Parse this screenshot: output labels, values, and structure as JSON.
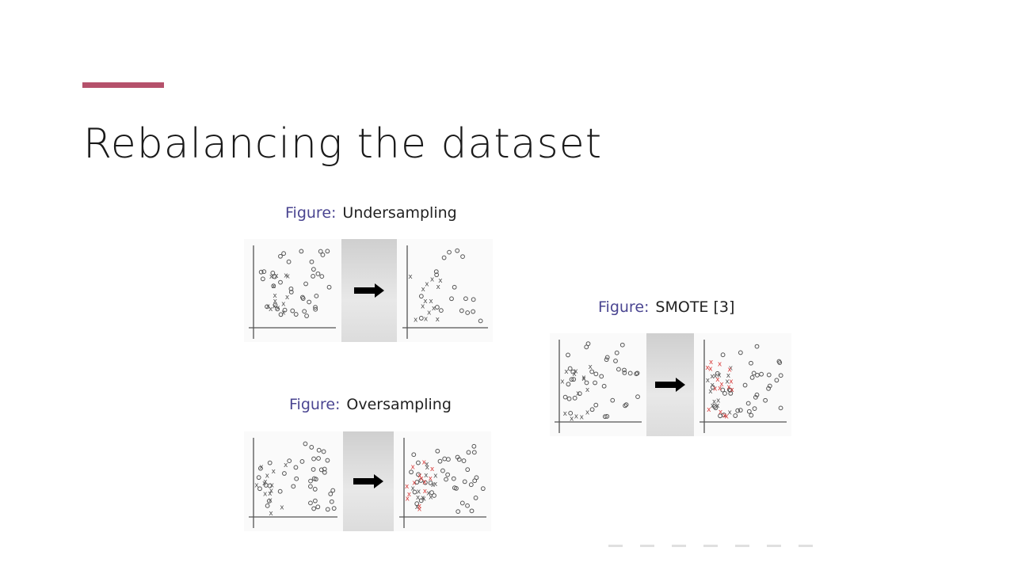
{
  "slide": {
    "title": "Rebalancing the dataset",
    "accent_color": "#b5516b"
  },
  "figures": [
    {
      "id": "undersampling",
      "caption_label": "Figure:",
      "caption_text": "Undersampling"
    },
    {
      "id": "oversampling",
      "caption_label": "Figure:",
      "caption_text": "Oversampling"
    },
    {
      "id": "smote",
      "caption_label": "Figure:",
      "caption_text": "SMOTE [3]"
    }
  ],
  "colors": {
    "caption_label": "#4a4591",
    "majority_marker": "#555555",
    "synthetic_marker": "#d9403f",
    "arrow": "#000000"
  },
  "icons": {
    "arrow": "right-arrow-icon"
  }
}
